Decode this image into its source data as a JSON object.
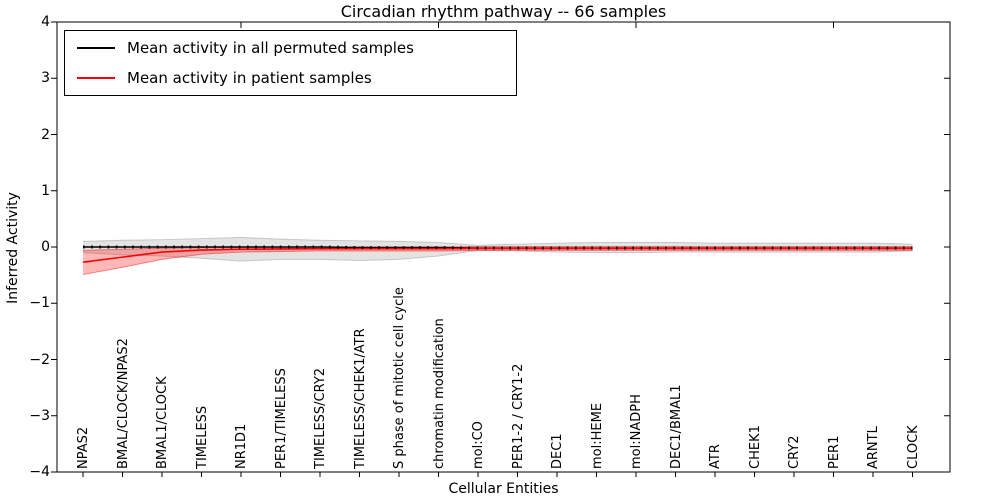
{
  "chart_data": {
    "type": "line",
    "title": "Circadian rhythm pathway -- 66 samples",
    "xlabel": "Cellular Entities",
    "ylabel": "Inferred Activity",
    "ylim": [
      -4,
      4
    ],
    "ytick_labels": [
      "4",
      "3",
      "2",
      "1",
      "0",
      "−1",
      "−2",
      "−3",
      "−4"
    ],
    "ytick_values": [
      4,
      3,
      2,
      1,
      0,
      -1,
      -2,
      -3,
      -4
    ],
    "grid": false,
    "legend_position": "upper left",
    "categories": [
      "NPAS2",
      "BMAL/CLOCK/NPAS2",
      "BMAL1/CLOCK",
      "TIMELESS",
      "NR1D1",
      "PER1/TIMELESS",
      "TIMELESS/CRY2",
      "TIMELESS/CHEK1/ATR",
      "S phase of mitotic cell cycle",
      "chromatin modification",
      "mol:CO",
      "PER1-2 / CRY1-2",
      "DEC1",
      "mol:HEME",
      "mol:NADPH",
      "DEC1/BMAL1",
      "ATR",
      "CHEK1",
      "CRY2",
      "PER1",
      "ARNTL",
      "CLOCK"
    ],
    "series": [
      {
        "name": "Mean activity in all permuted samples",
        "color": "#000000",
        "band_color": "rgba(128,128,128,0.22)",
        "band_edge_color": "rgba(128,128,128,0.38)",
        "values": [
          0,
          0,
          0,
          0,
          0,
          0,
          0,
          -0.01,
          -0.01,
          -0.01,
          -0.02,
          -0.02,
          -0.02,
          -0.02,
          -0.02,
          -0.02,
          -0.02,
          -0.02,
          -0.02,
          -0.02,
          -0.02,
          -0.02
        ],
        "band_upper": [
          0.1,
          0.12,
          0.13,
          0.15,
          0.17,
          0.14,
          0.12,
          0.11,
          0.1,
          0.08,
          0.03,
          0.05,
          0.07,
          0.08,
          0.08,
          0.08,
          0.07,
          0.07,
          0.07,
          0.07,
          0.07,
          0.05
        ],
        "band_lower": [
          -0.1,
          -0.14,
          -0.16,
          -0.2,
          -0.25,
          -0.22,
          -0.22,
          -0.24,
          -0.22,
          -0.16,
          -0.06,
          -0.07,
          -0.09,
          -0.1,
          -0.1,
          -0.09,
          -0.09,
          -0.09,
          -0.09,
          -0.09,
          -0.09,
          -0.07
        ]
      },
      {
        "name": "Mean activity in patient samples",
        "color": "#ff0000",
        "band_color": "rgba(255,0,0,0.28)",
        "band_edge_color": "rgba(255,0,0,0.45)",
        "values": [
          -0.27,
          -0.18,
          -0.09,
          -0.055,
          -0.04,
          -0.035,
          -0.03,
          -0.03,
          -0.03,
          -0.03,
          -0.025,
          -0.025,
          -0.025,
          -0.025,
          -0.025,
          -0.025,
          -0.025,
          -0.025,
          -0.025,
          -0.025,
          -0.025,
          -0.025
        ],
        "band_upper": [
          -0.06,
          -0.04,
          -0.02,
          -0.01,
          0.0,
          0.0,
          0.0,
          0.0,
          0.0,
          0.0,
          0.01,
          0.01,
          0.01,
          0.01,
          0.01,
          0.01,
          0.01,
          0.01,
          0.01,
          0.01,
          0.01,
          0.01
        ],
        "band_lower": [
          -0.49,
          -0.36,
          -0.22,
          -0.13,
          -0.09,
          -0.08,
          -0.07,
          -0.07,
          -0.07,
          -0.07,
          -0.06,
          -0.06,
          -0.06,
          -0.06,
          -0.06,
          -0.06,
          -0.06,
          -0.06,
          -0.06,
          -0.06,
          -0.06,
          -0.06
        ]
      }
    ]
  }
}
